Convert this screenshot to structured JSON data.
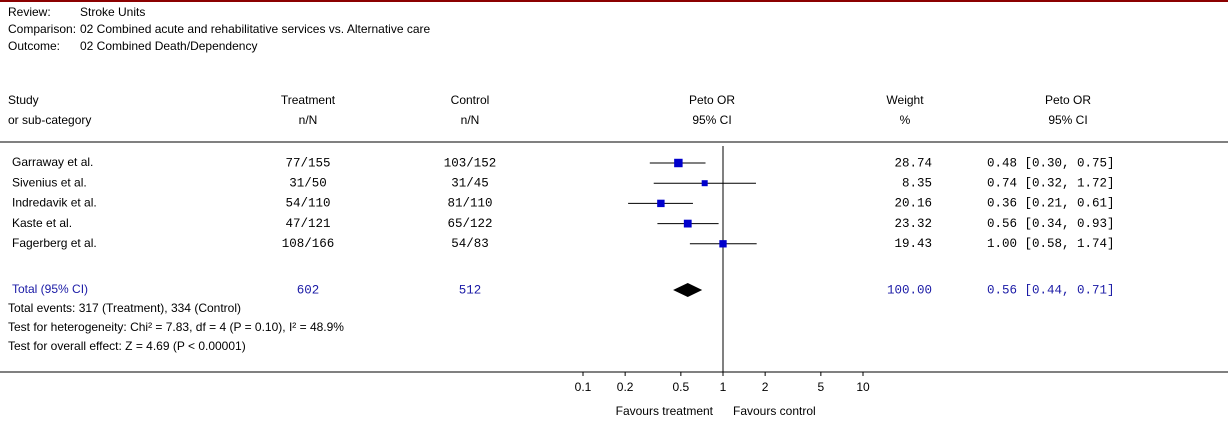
{
  "header": {
    "review_label": "Review:",
    "review": "Stroke Units",
    "comparison_label": "Comparison:",
    "comparison": "02 Combined acute and rehabilitative services vs. Alternative care",
    "outcome_label": "Outcome:",
    "outcome": "02 Combined Death/Dependency"
  },
  "columns": [
    [
      "Study",
      "or sub-category"
    ],
    [
      "Treatment",
      "n/N"
    ],
    [
      "Control",
      "n/N"
    ],
    [
      "Peto OR",
      "95% CI"
    ],
    [
      "Weight",
      "%"
    ],
    [
      "Peto OR",
      "95% CI"
    ]
  ],
  "studies": [
    {
      "name": "Garraway et al.",
      "treatment": "77/155",
      "control": "103/152",
      "weight": "28.74",
      "ci_label": "0.48 [0.30, 0.75]",
      "or": 0.48,
      "lower": 0.3,
      "upper": 0.75
    },
    {
      "name": "Sivenius et al.",
      "treatment": "31/50",
      "control": "31/45",
      "weight": "8.35",
      "ci_label": "0.74 [0.32, 1.72]",
      "or": 0.74,
      "lower": 0.32,
      "upper": 1.72
    },
    {
      "name": "Indredavik et al.",
      "treatment": "54/110",
      "control": "81/110",
      "weight": "20.16",
      "ci_label": "0.36 [0.21, 0.61]",
      "or": 0.36,
      "lower": 0.21,
      "upper": 0.61
    },
    {
      "name": "Kaste et al.",
      "treatment": "47/121",
      "control": "65/122",
      "weight": "23.32",
      "ci_label": "0.56 [0.34, 0.93]",
      "or": 0.56,
      "lower": 0.34,
      "upper": 0.93
    },
    {
      "name": "Fagerberg et al.",
      "treatment": "108/166",
      "control": "54/83",
      "weight": "19.43",
      "ci_label": "1.00 [0.58, 1.74]",
      "or": 1.0,
      "lower": 0.58,
      "upper": 1.74
    }
  ],
  "total": {
    "name": "Total (95% CI)",
    "treatment": "602",
    "control": "512",
    "weight": "100.00",
    "ci_label": "0.56 [0.44, 0.71]",
    "or": 0.56,
    "lower": 0.44,
    "upper": 0.71
  },
  "notes": [
    "Total events: 317 (Treatment), 334 (Control)",
    "Test for heterogeneity: Chi² = 7.83, df = 4 (P = 0.10), I² = 48.9%",
    "Test for overall effect: Z = 4.69 (P < 0.00001)"
  ],
  "axis": {
    "log": true,
    "xticks": [
      0.1,
      0.2,
      0.5,
      1,
      2,
      5,
      10
    ],
    "left_label": "Favours treatment",
    "right_label": "Favours control"
  }
}
